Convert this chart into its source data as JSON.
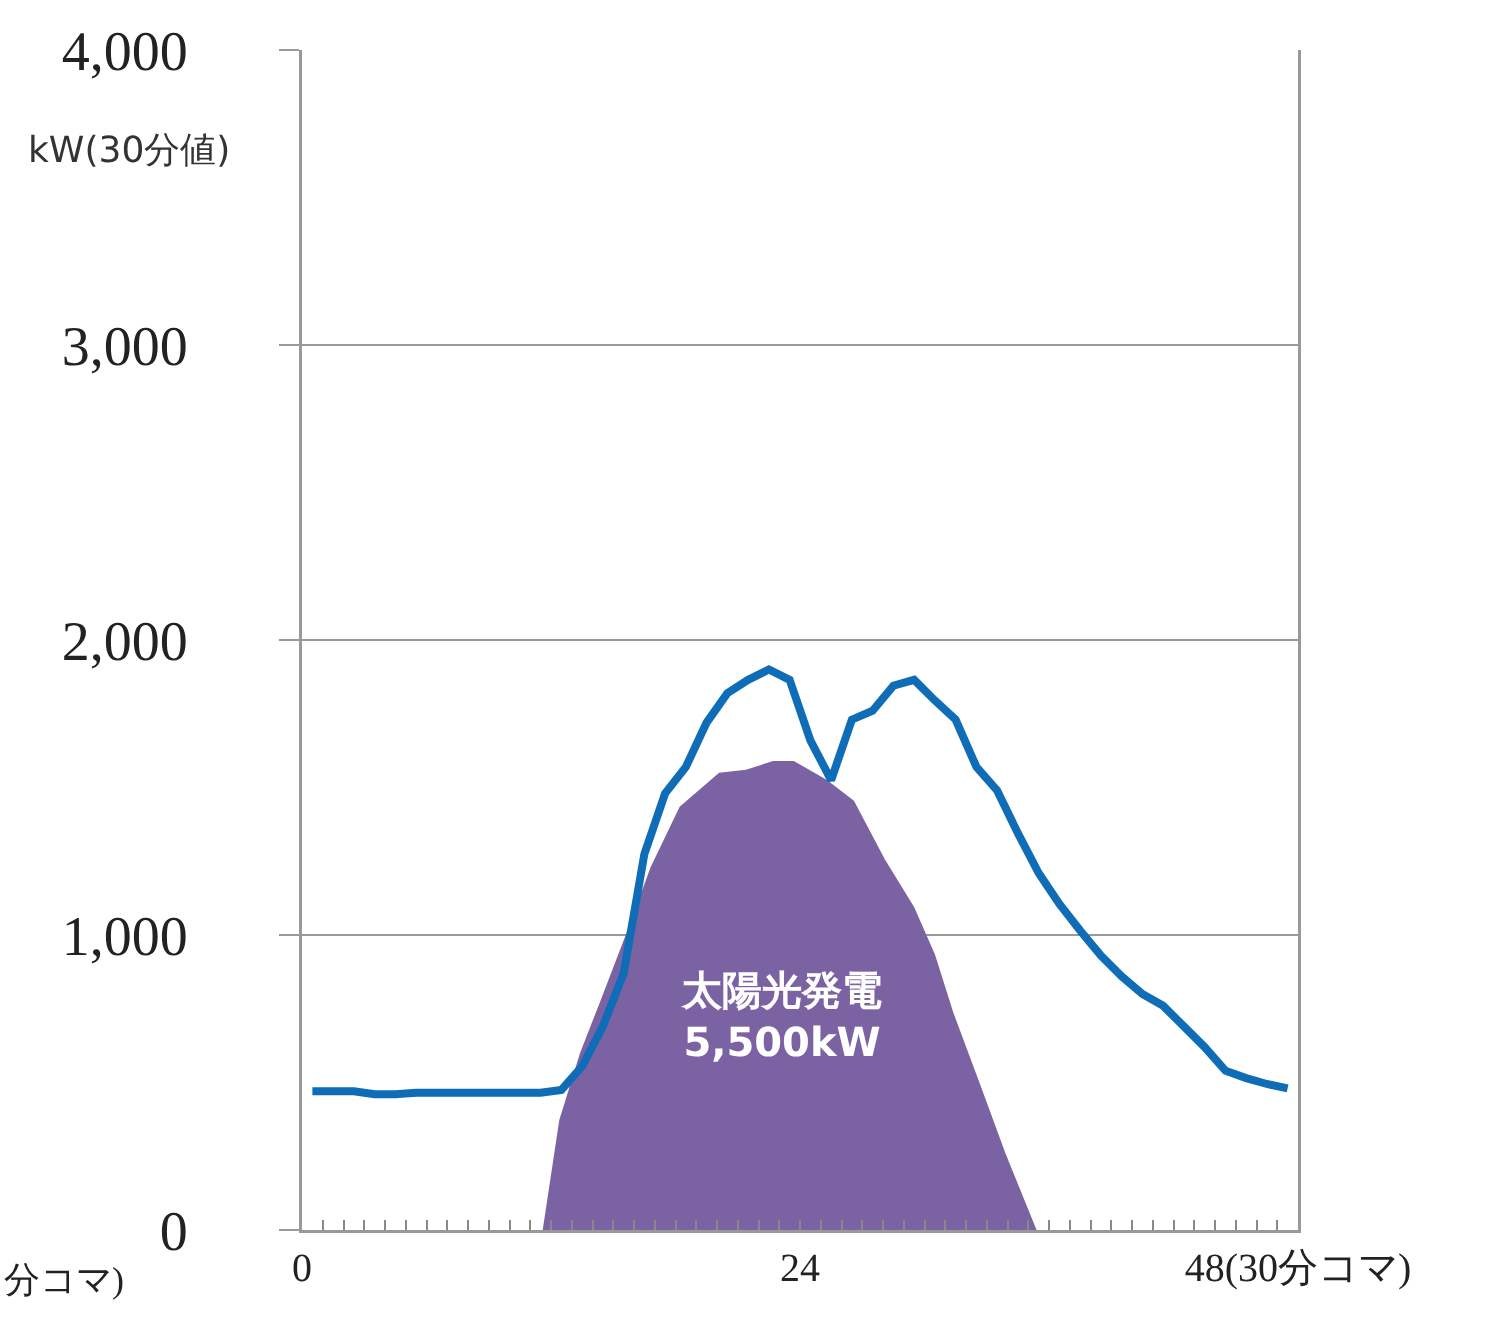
{
  "chart_data": {
    "type": "line",
    "ylabel": "kW(30分値)",
    "annotations": [
      "太陽光発電\n5,500kW",
      "分コマ)"
    ],
    "xlim": [
      0,
      48
    ],
    "xticks": [
      0,
      {
        "value": 1,
        "label": null
      },
      {
        "value": 2,
        "label": null
      },
      {
        "value": 3,
        "label": null
      },
      {
        "value": 4,
        "label": null
      },
      {
        "value": 5,
        "label": null
      },
      {
        "value": 6,
        "label": null
      },
      {
        "value": 7,
        "label": null
      },
      {
        "value": 8,
        "label": null
      },
      {
        "value": 9,
        "label": null
      },
      {
        "value": 10,
        "label": null
      },
      {
        "value": 11,
        "label": null
      },
      {
        "value": 12,
        "label": null
      },
      {
        "value": 13,
        "label": null
      },
      {
        "value": 14,
        "label": null
      },
      {
        "value": 15,
        "label": null
      },
      {
        "value": 16,
        "label": null
      },
      {
        "value": 17,
        "label": null
      },
      {
        "value": 18,
        "label": null
      },
      {
        "value": 19,
        "label": null
      },
      {
        "value": 20,
        "label": null
      },
      {
        "value": 21,
        "label": null
      },
      {
        "value": 22,
        "label": null
      },
      {
        "value": 23,
        "label": null
      },
      24,
      {
        "value": 25,
        "label": null
      },
      {
        "value": 26,
        "label": null
      },
      {
        "value": 27,
        "label": null
      },
      {
        "value": 28,
        "label": null
      },
      {
        "value": 29,
        "label": null
      },
      {
        "value": 30,
        "label": null
      },
      {
        "value": 31,
        "label": null
      },
      {
        "value": 32,
        "label": null
      },
      {
        "value": 33,
        "label": null
      },
      {
        "value": 34,
        "label": null
      },
      {
        "value": 35,
        "label": null
      },
      {
        "value": 36,
        "label": null
      },
      {
        "value": 37,
        "label": null
      },
      {
        "value": 38,
        "label": null
      },
      {
        "value": 39,
        "label": null
      },
      {
        "value": 40,
        "label": null
      },
      {
        "value": 41,
        "label": null
      },
      {
        "value": 42,
        "label": null
      },
      {
        "value": 43,
        "label": null
      },
      {
        "value": 44,
        "label": null
      },
      {
        "value": 45,
        "label": null
      },
      {
        "value": 46,
        "label": null
      },
      {
        "value": 47,
        "label": null
      },
      {
        "value": 48,
        "label": "48(30分コマ)"
      }
    ],
    "ylim": [
      0,
      4000
    ],
    "yticks": [
      0,
      {
        "value": 1000,
        "label": "1,000"
      },
      {
        "value": 2000,
        "label": "2,000"
      },
      {
        "value": 3000,
        "label": "3,000"
      },
      {
        "value": 4000,
        "label": "4,000"
      }
    ],
    "grid": "y",
    "series": [
      {
        "type": "area",
        "color": "#7b62a3",
        "x": [
          11.6,
          12.4,
          13.4,
          14.4,
          15.6,
          16.8,
          18.2,
          20.1,
          21.4,
          22.7,
          23.7,
          25.3,
          26.6,
          28.1,
          29.5,
          30.5,
          31.4,
          32.7,
          33.9,
          35.4
        ],
        "values": [
          0,
          373,
          600,
          780,
          1000,
          1230,
          1435,
          1550,
          1560,
          1590,
          1590,
          1525,
          1455,
          1255,
          1095,
          935,
          735,
          490,
          260,
          0
        ]
      },
      {
        "color": "#0f6db8",
        "x": [
          0.5,
          1.5,
          2.5,
          3.5,
          4.5,
          5.5,
          6.5,
          7.5,
          8.5,
          9.5,
          10.5,
          11.5,
          12.5,
          13.5,
          14.5,
          15.5,
          16.5,
          17.5,
          18.5,
          19.5,
          20.5,
          21.5,
          22.5,
          23.5,
          24.5,
          25.5,
          26.5,
          27.5,
          28.5,
          29.5,
          30.5,
          31.5,
          32.5,
          33.5,
          34.5,
          35.5,
          36.5,
          37.5,
          38.5,
          39.5,
          40.5,
          41.5,
          42.5,
          43.5,
          44.5,
          45.5,
          46.5,
          47.5
        ],
        "values": [
          470,
          470,
          470,
          460,
          460,
          465,
          465,
          465,
          465,
          465,
          465,
          465,
          475,
          555,
          690,
          870,
          1275,
          1480,
          1570,
          1720,
          1820,
          1865,
          1900,
          1865,
          1660,
          1525,
          1730,
          1760,
          1845,
          1865,
          1795,
          1730,
          1570,
          1490,
          1345,
          1210,
          1105,
          1015,
          930,
          860,
          800,
          760,
          690,
          620,
          540,
          515,
          495,
          480
        ]
      }
    ]
  }
}
